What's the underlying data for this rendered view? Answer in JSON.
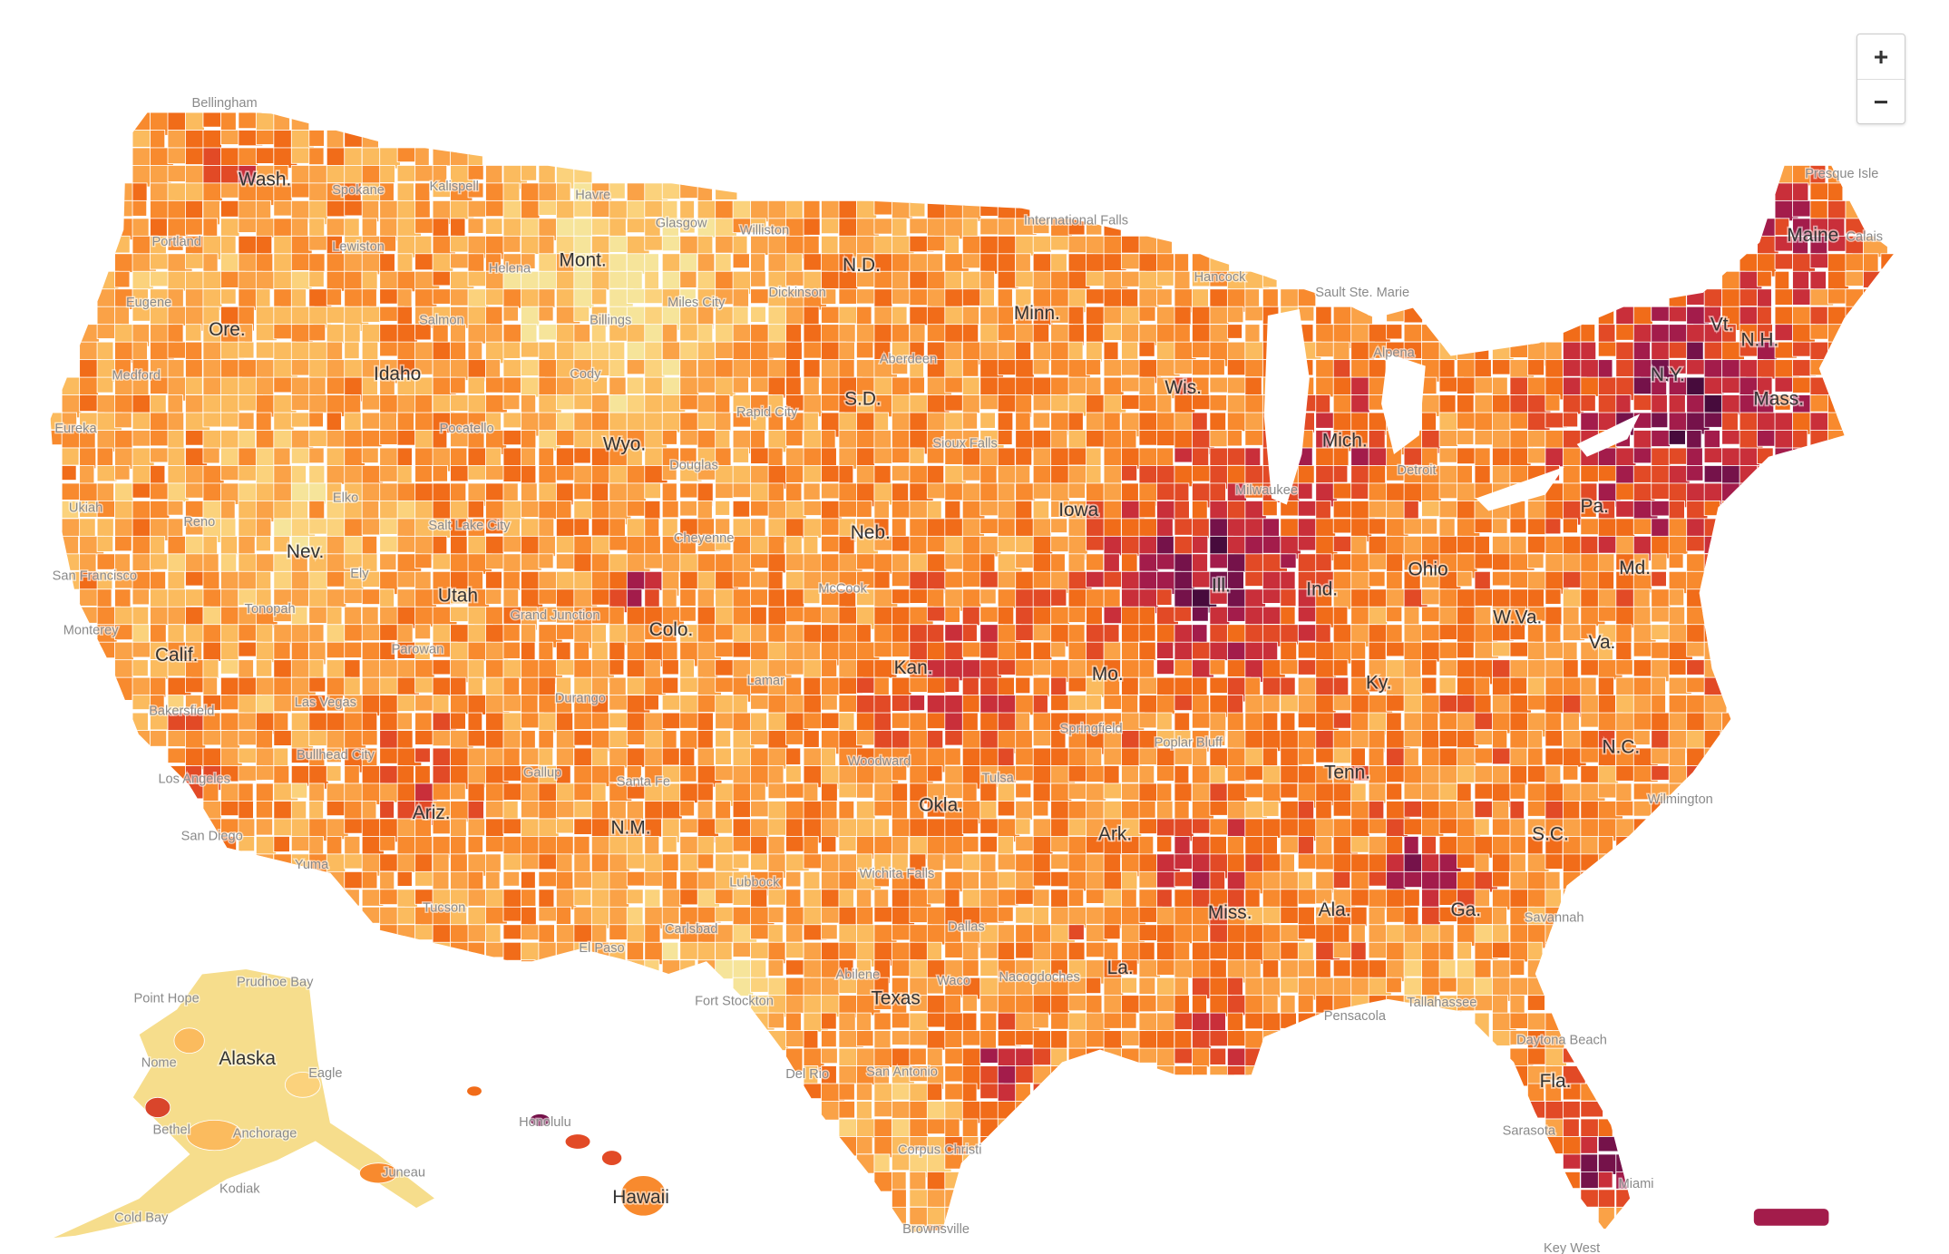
{
  "map": {
    "zoom_controls": [
      "+",
      "−"
    ],
    "state_labels": [
      "Wash.",
      "Ore.",
      "Calif.",
      "Nev.",
      "Idaho",
      "Mont.",
      "Wyo.",
      "Utah",
      "Colo.",
      "Ariz.",
      "N.M.",
      "N.D.",
      "S.D.",
      "Neb.",
      "Kan.",
      "Okla.",
      "Texas",
      "Minn.",
      "Iowa",
      "Mo.",
      "Ark.",
      "La.",
      "Wis.",
      "Ill.",
      "Mich.",
      "Ind.",
      "Ohio",
      "Ky.",
      "Tenn.",
      "Miss.",
      "Ala.",
      "Ga.",
      "Fla.",
      "S.C.",
      "N.C.",
      "Va.",
      "W.Va.",
      "Pa.",
      "N.Y.",
      "Md.",
      "Vt.",
      "N.H.",
      "Maine",
      "Mass.",
      "Alaska",
      "Hawaii"
    ],
    "city_labels": [
      "Bellingham",
      "Spokane",
      "Kalispell",
      "Havre",
      "Glasgow",
      "Williston",
      "Portland",
      "Lewiston",
      "Helena",
      "Eugene",
      "Salmon",
      "Miles City",
      "Billings",
      "Medford",
      "Cody",
      "Eureka",
      "Pocatello",
      "Rapid City",
      "Douglas",
      "Ukiah",
      "Elko",
      "Reno",
      "Salt Lake City",
      "San Francisco",
      "Monterey",
      "Ely",
      "Tonopah",
      "Grand Junction",
      "Cheyenne",
      "McCook",
      "Parowan",
      "Durango",
      "Lamar",
      "Las Vegas",
      "Bakersfield",
      "Bullhead City",
      "Los Angeles",
      "San Diego",
      "Yuma",
      "Gallup",
      "Santa Fe",
      "Tucson",
      "El Paso",
      "Carlsbad",
      "Lubbock",
      "Woodward",
      "Wichita Falls",
      "Abilene",
      "Dallas",
      "Waco",
      "Nacogdoches",
      "San Antonio",
      "Del Rio",
      "Corpus Christi",
      "Brownsville",
      "Fort Stockton",
      "Tulsa",
      "Springfield",
      "Poplar Bluff",
      "International Falls",
      "Hancock",
      "Sault Ste. Marie",
      "Alpena",
      "Dickinson",
      "Aberdeen",
      "Sioux Falls",
      "Milwaukee",
      "Detroit",
      "Presque Isle",
      "Calais",
      "Wilmington",
      "Savannah",
      "Daytona Beach",
      "Tallahassee",
      "Pensacola",
      "Sarasota",
      "Miami",
      "Key West",
      "Point Hope",
      "Prudhoe Bay",
      "Nome",
      "Bethel",
      "Anchorage",
      "Kodiak",
      "Cold Bay",
      "Eagle",
      "Juneau",
      "Honolulu"
    ]
  }
}
